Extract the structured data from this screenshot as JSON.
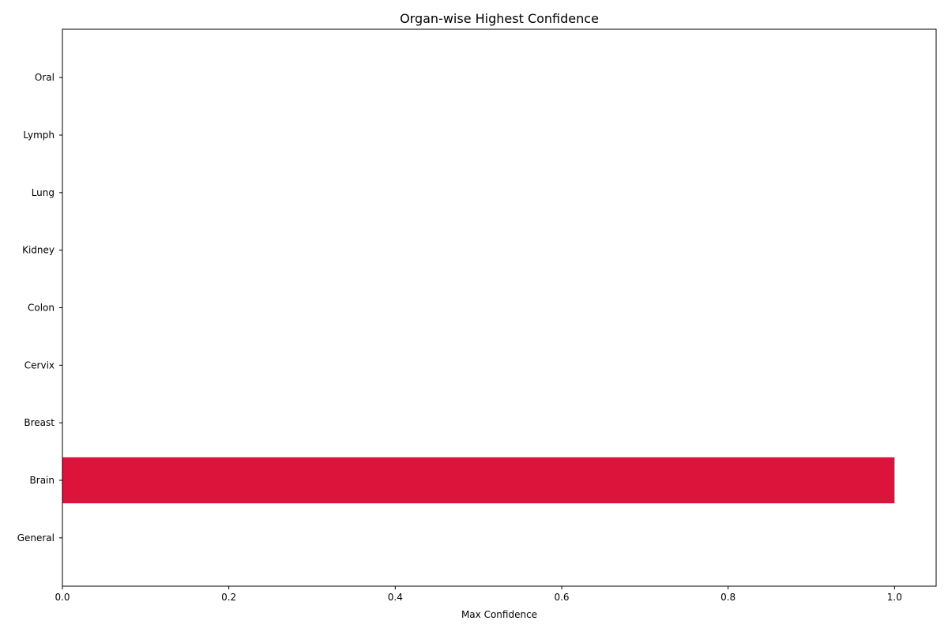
{
  "chart_data": {
    "type": "bar",
    "orientation": "horizontal",
    "title": "Organ-wise Highest Confidence",
    "xlabel": "Max Confidence",
    "ylabel": "",
    "categories": [
      "General",
      "Brain",
      "Breast",
      "Cervix",
      "Colon",
      "Kidney",
      "Lung",
      "Lymph",
      "Oral"
    ],
    "values": [
      0,
      1.0,
      0,
      0,
      0,
      0,
      0,
      0,
      0
    ],
    "xlim": [
      0,
      1.05
    ],
    "xticks": [
      "0.0",
      "0.2",
      "0.4",
      "0.6",
      "0.8",
      "1.0"
    ],
    "bar_color": "#dc143c",
    "grid": false,
    "legend": "none"
  }
}
